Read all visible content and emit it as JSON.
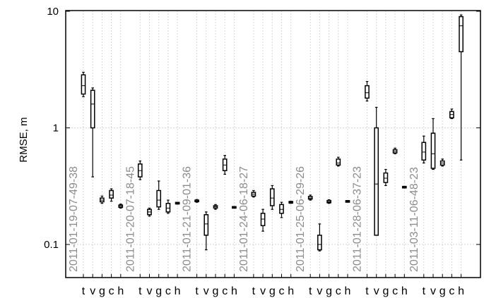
{
  "chart_data": {
    "type": "box",
    "ylabel": "RMSE, m",
    "yscale": "log",
    "ylim": [
      0.05,
      10
    ],
    "yticks": [
      {
        "value": 0.1,
        "label": "0.1"
      },
      {
        "value": 1,
        "label": "1"
      },
      {
        "value": 10,
        "label": "10"
      }
    ],
    "grid": true,
    "categories": [
      "t",
      "v",
      "g",
      "c",
      "h"
    ],
    "groups": [
      {
        "label": "2011-01-19-07-49-38",
        "boxes": [
          {
            "cat": "t",
            "min": 1.85,
            "q1": 1.95,
            "median": 2.3,
            "q3": 2.85,
            "max": 3.0
          },
          {
            "cat": "v",
            "min": 0.38,
            "q1": 1.0,
            "median": 1.6,
            "q3": 2.1,
            "max": 2.2
          },
          {
            "cat": "g",
            "min": 0.225,
            "q1": 0.232,
            "median": 0.24,
            "q3": 0.25,
            "max": 0.26
          },
          {
            "cat": "c",
            "min": 0.235,
            "q1": 0.25,
            "median": 0.265,
            "q3": 0.29,
            "max": 0.3
          },
          {
            "cat": "h",
            "min": 0.205,
            "q1": 0.208,
            "median": 0.213,
            "q3": 0.218,
            "max": 0.222
          }
        ]
      },
      {
        "label": "2011-01-20-07-18-45",
        "boxes": [
          {
            "cat": "t",
            "min": 0.36,
            "q1": 0.38,
            "median": 0.43,
            "q3": 0.49,
            "max": 0.52
          },
          {
            "cat": "v",
            "min": 0.175,
            "q1": 0.18,
            "median": 0.19,
            "q3": 0.2,
            "max": 0.205
          },
          {
            "cat": "g",
            "min": 0.2,
            "q1": 0.21,
            "median": 0.24,
            "q3": 0.29,
            "max": 0.35
          },
          {
            "cat": "c",
            "min": 0.185,
            "q1": 0.19,
            "median": 0.205,
            "q3": 0.225,
            "max": 0.24
          },
          {
            "cat": "h",
            "min": 0.222,
            "q1": 0.224,
            "median": 0.226,
            "q3": 0.228,
            "max": 0.23
          }
        ]
      },
      {
        "label": "2011-01-21-09-01-36",
        "boxes": [
          {
            "cat": "t",
            "min": 0.23,
            "q1": 0.233,
            "median": 0.236,
            "q3": 0.24,
            "max": 0.243
          },
          {
            "cat": "v",
            "min": 0.09,
            "q1": 0.12,
            "median": 0.15,
            "q3": 0.18,
            "max": 0.19
          },
          {
            "cat": "g",
            "min": 0.2,
            "q1": 0.205,
            "median": 0.21,
            "q3": 0.215,
            "max": 0.22
          },
          {
            "cat": "c",
            "min": 0.4,
            "q1": 0.43,
            "median": 0.48,
            "q3": 0.54,
            "max": 0.58
          },
          {
            "cat": "h",
            "min": 0.206,
            "q1": 0.207,
            "median": 0.208,
            "q3": 0.209,
            "max": 0.21
          }
        ]
      },
      {
        "label": "2011-01-24-06-18-27",
        "boxes": [
          {
            "cat": "t",
            "min": 0.255,
            "q1": 0.26,
            "median": 0.27,
            "q3": 0.28,
            "max": 0.29
          },
          {
            "cat": "v",
            "min": 0.13,
            "q1": 0.145,
            "median": 0.165,
            "q3": 0.185,
            "max": 0.2
          },
          {
            "cat": "g",
            "min": 0.2,
            "q1": 0.215,
            "median": 0.25,
            "q3": 0.3,
            "max": 0.32
          },
          {
            "cat": "c",
            "min": 0.17,
            "q1": 0.185,
            "median": 0.2,
            "q3": 0.22,
            "max": 0.23
          },
          {
            "cat": "h",
            "min": 0.225,
            "q1": 0.227,
            "median": 0.23,
            "q3": 0.233,
            "max": 0.235
          }
        ]
      },
      {
        "label": "2011-01-25-06-29-26",
        "boxes": [
          {
            "cat": "t",
            "min": 0.24,
            "q1": 0.245,
            "median": 0.25,
            "q3": 0.258,
            "max": 0.265
          },
          {
            "cat": "v",
            "min": 0.088,
            "q1": 0.09,
            "median": 0.1,
            "q3": 0.12,
            "max": 0.15
          },
          {
            "cat": "g",
            "min": 0.225,
            "q1": 0.228,
            "median": 0.232,
            "q3": 0.238,
            "max": 0.242
          },
          {
            "cat": "c",
            "min": 0.47,
            "q1": 0.48,
            "median": 0.5,
            "q3": 0.54,
            "max": 0.56
          },
          {
            "cat": "h",
            "min": 0.232,
            "q1": 0.233,
            "median": 0.234,
            "q3": 0.235,
            "max": 0.236
          }
        ]
      },
      {
        "label": "2011-01-28-06-37-23",
        "boxes": [
          {
            "cat": "t",
            "min": 1.7,
            "q1": 1.8,
            "median": 2.0,
            "q3": 2.3,
            "max": 2.5
          },
          {
            "cat": "v",
            "min": 0.12,
            "q1": 0.12,
            "median": 0.33,
            "q3": 1.0,
            "max": 1.5
          },
          {
            "cat": "g",
            "min": 0.32,
            "q1": 0.34,
            "median": 0.37,
            "q3": 0.41,
            "max": 0.44
          },
          {
            "cat": "c",
            "min": 0.6,
            "q1": 0.61,
            "median": 0.63,
            "q3": 0.65,
            "max": 0.67
          },
          {
            "cat": "h",
            "min": 0.308,
            "q1": 0.309,
            "median": 0.31,
            "q3": 0.311,
            "max": 0.312
          }
        ]
      },
      {
        "label": "2011-03-11-06-48-23",
        "boxes": [
          {
            "cat": "t",
            "min": 0.5,
            "q1": 0.53,
            "median": 0.62,
            "q3": 0.75,
            "max": 0.85
          },
          {
            "cat": "v",
            "min": 0.44,
            "q1": 0.45,
            "median": 0.6,
            "q3": 0.9,
            "max": 1.2
          },
          {
            "cat": "g",
            "min": 0.47,
            "q1": 0.48,
            "median": 0.5,
            "q3": 0.52,
            "max": 0.54
          },
          {
            "cat": "c",
            "min": 1.2,
            "q1": 1.22,
            "median": 1.3,
            "q3": 1.38,
            "max": 1.45
          },
          {
            "cat": "h",
            "min": 0.53,
            "q1": 4.5,
            "median": 7.5,
            "q3": 9.0,
            "max": 9.3
          }
        ]
      }
    ]
  }
}
